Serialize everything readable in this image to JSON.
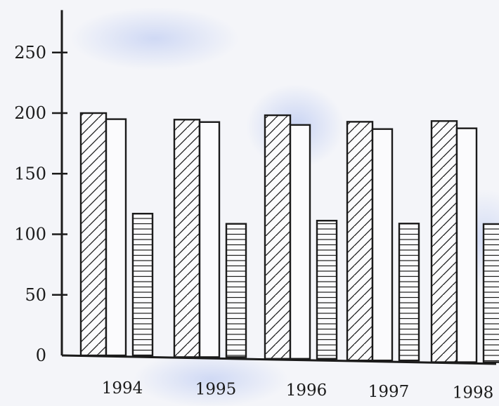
{
  "chart_data": {
    "type": "bar",
    "categories": [
      "1994",
      "1995",
      "1996",
      "1997",
      "1998"
    ],
    "series": [
      {
        "values": [
          200,
          196,
          201,
          197,
          199
        ],
        "pattern": "diagonal-hatch"
      },
      {
        "values": [
          195,
          194,
          193,
          191,
          193
        ],
        "pattern": "plain"
      },
      {
        "values": [
          117,
          110,
          114,
          113,
          114
        ],
        "pattern": "horizontal-lines"
      }
    ],
    "ylim": [
      0,
      285
    ],
    "yticks": [
      0,
      50,
      100,
      150,
      200,
      250
    ],
    "ytick_labels": [
      "0",
      "50",
      "100",
      "150",
      "200",
      "250"
    ],
    "title": "",
    "xlabel": "",
    "ylabel": "",
    "grid": false,
    "legend": "none"
  },
  "colors": {
    "ink": "#1b1b1b",
    "background": "#f4f5f9",
    "bar_fill": "#fbfbfd"
  }
}
